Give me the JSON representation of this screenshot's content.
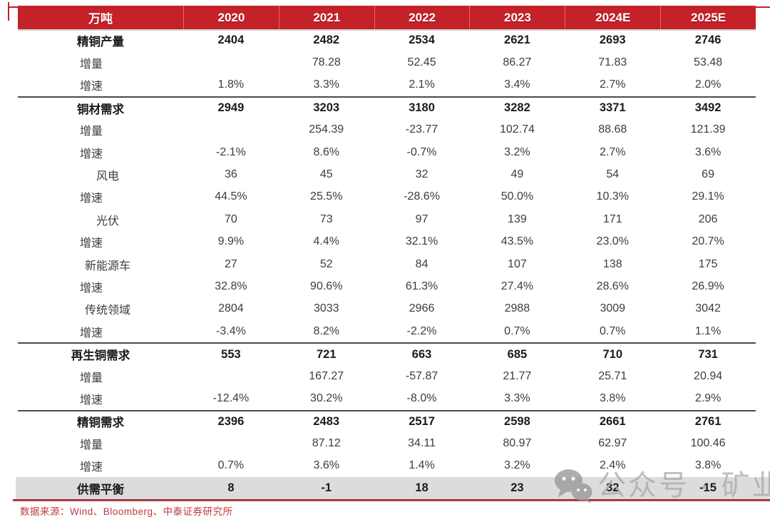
{
  "meta": {
    "source_note": "数据来源：Wind、Bloomberg、中泰证券研究所",
    "watermark_text": "公众号 · 矿业界",
    "watermark_icon": "wechat-icon",
    "colors": {
      "header_red": "#c42129",
      "balance_row_gray": "#dcdcdc",
      "source_text_red": "#c0393e",
      "watermark_gray": "#a9a9a9",
      "section_line": "#4a4a4a"
    }
  },
  "chart_data": {
    "type": "table",
    "title": "",
    "unit": "万吨",
    "columns": [
      "万吨",
      "2020",
      "2021",
      "2022",
      "2023",
      "2024E",
      "2025E"
    ],
    "rows": [
      {
        "label": "精铜产量",
        "level": 0,
        "bold": true,
        "section_line": false,
        "highlight": false,
        "values": [
          "2404",
          "2482",
          "2534",
          "2621",
          "2693",
          "2746"
        ]
      },
      {
        "label": "增量",
        "level": 1,
        "bold": false,
        "section_line": false,
        "highlight": false,
        "values": [
          "",
          "78.28",
          "52.45",
          "86.27",
          "71.83",
          "53.48"
        ]
      },
      {
        "label": "增速",
        "level": 1,
        "bold": false,
        "section_line": false,
        "highlight": false,
        "values": [
          "1.8%",
          "3.3%",
          "2.1%",
          "3.4%",
          "2.7%",
          "2.0%"
        ]
      },
      {
        "label": "铜材需求",
        "level": 0,
        "bold": true,
        "section_line": true,
        "highlight": false,
        "values": [
          "2949",
          "3203",
          "3180",
          "3282",
          "3371",
          "3492"
        ]
      },
      {
        "label": "增量",
        "level": 1,
        "bold": false,
        "section_line": false,
        "highlight": false,
        "values": [
          "",
          "254.39",
          "-23.77",
          "102.74",
          "88.68",
          "121.39"
        ]
      },
      {
        "label": "增速",
        "level": 1,
        "bold": false,
        "section_line": false,
        "highlight": false,
        "values": [
          "-2.1%",
          "8.6%",
          "-0.7%",
          "3.2%",
          "2.7%",
          "3.6%"
        ]
      },
      {
        "label": "风电",
        "level": 2,
        "bold": false,
        "section_line": false,
        "highlight": false,
        "values": [
          "36",
          "45",
          "32",
          "49",
          "54",
          "69"
        ]
      },
      {
        "label": "增速",
        "level": 1,
        "bold": false,
        "section_line": false,
        "highlight": false,
        "values": [
          "44.5%",
          "25.5%",
          "-28.6%",
          "50.0%",
          "10.3%",
          "29.1%"
        ]
      },
      {
        "label": "光伏",
        "level": 2,
        "bold": false,
        "section_line": false,
        "highlight": false,
        "values": [
          "70",
          "73",
          "97",
          "139",
          "171",
          "206"
        ]
      },
      {
        "label": "增速",
        "level": 1,
        "bold": false,
        "section_line": false,
        "highlight": false,
        "values": [
          "9.9%",
          "4.4%",
          "32.1%",
          "43.5%",
          "23.0%",
          "20.7%"
        ]
      },
      {
        "label": "新能源车",
        "level": 2,
        "bold": false,
        "section_line": false,
        "highlight": false,
        "values": [
          "27",
          "52",
          "84",
          "107",
          "138",
          "175"
        ]
      },
      {
        "label": "增速",
        "level": 1,
        "bold": false,
        "section_line": false,
        "highlight": false,
        "values": [
          "32.8%",
          "90.6%",
          "61.3%",
          "27.4%",
          "28.6%",
          "26.9%"
        ]
      },
      {
        "label": "传统领域",
        "level": 2,
        "bold": false,
        "section_line": false,
        "highlight": false,
        "values": [
          "2804",
          "3033",
          "2966",
          "2988",
          "3009",
          "3042"
        ]
      },
      {
        "label": "增速",
        "level": 1,
        "bold": false,
        "section_line": false,
        "highlight": false,
        "values": [
          "-3.4%",
          "8.2%",
          "-2.2%",
          "0.7%",
          "0.7%",
          "1.1%"
        ]
      },
      {
        "label": "再生铜需求",
        "level": 0,
        "bold": true,
        "section_line": true,
        "highlight": false,
        "values": [
          "553",
          "721",
          "663",
          "685",
          "710",
          "731"
        ]
      },
      {
        "label": "增量",
        "level": 1,
        "bold": false,
        "section_line": false,
        "highlight": false,
        "values": [
          "",
          "167.27",
          "-57.87",
          "21.77",
          "25.71",
          "20.94"
        ]
      },
      {
        "label": "增速",
        "level": 1,
        "bold": false,
        "section_line": false,
        "highlight": false,
        "values": [
          "-12.4%",
          "30.2%",
          "-8.0%",
          "3.3%",
          "3.8%",
          "2.9%"
        ]
      },
      {
        "label": "精铜需求",
        "level": 0,
        "bold": true,
        "section_line": true,
        "highlight": false,
        "values": [
          "2396",
          "2483",
          "2517",
          "2598",
          "2661",
          "2761"
        ]
      },
      {
        "label": "增量",
        "level": 1,
        "bold": false,
        "section_line": false,
        "highlight": false,
        "values": [
          "",
          "87.12",
          "34.11",
          "80.97",
          "62.97",
          "100.46"
        ]
      },
      {
        "label": "增速",
        "level": 1,
        "bold": false,
        "section_line": false,
        "highlight": false,
        "values": [
          "0.7%",
          "3.6%",
          "1.4%",
          "3.2%",
          "2.4%",
          "3.8%"
        ]
      },
      {
        "label": "供需平衡",
        "level": 0,
        "bold": true,
        "section_line": false,
        "highlight": true,
        "values": [
          "8",
          "-1",
          "18",
          "23",
          "32",
          "-15"
        ]
      }
    ]
  }
}
